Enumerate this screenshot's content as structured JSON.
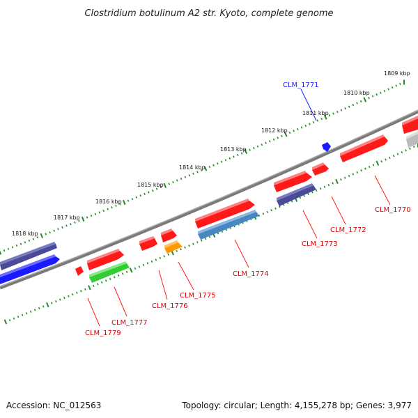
{
  "title": "Clostridium botulinum A2 str. Kyoto, complete genome",
  "footer": {
    "accession": "Accession: NC_012563",
    "topology": "Topology: circular; Length: 4,155,278 bp; Genes: 3,977"
  },
  "colors": {
    "red": "#ff1a1a",
    "blue": "#1a1aff",
    "navy": "#4a4a98",
    "steel": "#4a86c0",
    "green": "#33cc33",
    "orange": "#ff9900",
    "gray": "#bbbbbb",
    "ruler": "#228b22",
    "backbone": "#7a7a7a"
  },
  "ruler_labels": [
    "1818 kbp",
    "1817 kbp",
    "1816 kbp",
    "1815 kbp",
    "1814 kbp",
    "1813 kbp",
    "1812 kbp",
    "1811 kbp",
    "1810 kbp",
    "1809 kbp"
  ],
  "genes": [
    {
      "name": "CLM_1770",
      "color": "red"
    },
    {
      "name": "CLM_1771",
      "color": "blue"
    },
    {
      "name": "CLM_1772",
      "color": "red"
    },
    {
      "name": "CLM_1773",
      "color": "red"
    },
    {
      "name": "CLM_1774",
      "color": "red"
    },
    {
      "name": "CLM_1775",
      "color": "red"
    },
    {
      "name": "CLM_1776",
      "color": "red"
    },
    {
      "name": "CLM_1777",
      "color": "red"
    },
    {
      "name": "CLM_1779",
      "color": "red"
    }
  ]
}
